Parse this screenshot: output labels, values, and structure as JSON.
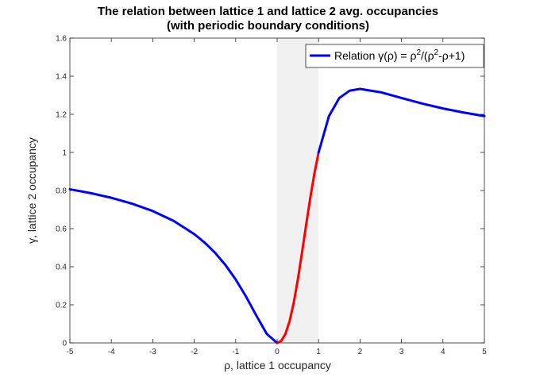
{
  "chart_data": {
    "type": "line",
    "title": "The relation between lattice 1 and lattice 2 avg. occupancies",
    "subtitle": "(with periodic boundary conditions)",
    "xlabel": "ρ, lattice 1 occupancy",
    "ylabel": "γ, lattice 2 occupancy",
    "xlim": [
      -5,
      5
    ],
    "ylim": [
      0,
      1.6
    ],
    "xticks": [
      -5,
      -4,
      -3,
      -2,
      -1,
      0,
      1,
      2,
      3,
      4,
      5
    ],
    "yticks": [
      0,
      0.2,
      0.4,
      0.6,
      0.8,
      1,
      1.2,
      1.4,
      1.6
    ],
    "xtick_labels": [
      "-5",
      "-4",
      "-3",
      "-2",
      "-1",
      "0",
      "1",
      "2",
      "3",
      "4",
      "5"
    ],
    "ytick_labels": [
      "0",
      "0.2",
      "0.4",
      "0.6",
      "0.8",
      "1",
      "1.2",
      "1.4",
      "1.6"
    ],
    "grid": false,
    "shaded_region": {
      "x": [
        0,
        1
      ],
      "color": "#f0f0f0"
    },
    "legend": {
      "position": "top-right",
      "entries": [
        {
          "label_main": "Relation γ(ρ) = ρ",
          "sup1": "2",
          "label_mid": "/(ρ",
          "sup2": "2",
          "label_end": "-ρ+1)",
          "color": "#0000ff"
        }
      ]
    },
    "series": [
      {
        "color": "#0000ff",
        "x": [
          -5,
          -4.5,
          -4,
          -3.5,
          -3,
          -2.5,
          -2,
          -1.75,
          -1.5,
          -1.25,
          -1,
          -0.75,
          -0.5,
          -0.25,
          0
        ],
        "y": [
          0.8065,
          0.7864,
          0.7619,
          0.731,
          0.6923,
          0.641,
          0.5714,
          0.5269,
          0.4737,
          0.4098,
          0.3333,
          0.2432,
          0.1429,
          0.0476,
          0
        ]
      },
      {
        "color": "#ff0000",
        "x": [
          0,
          0.1,
          0.2,
          0.3,
          0.4,
          0.5,
          0.6,
          0.7,
          0.8,
          0.9,
          1
        ],
        "y": [
          0,
          0.011,
          0.0476,
          0.1139,
          0.2105,
          0.3333,
          0.4737,
          0.6203,
          0.7619,
          0.8901,
          1
        ]
      },
      {
        "color": "#0000ff",
        "x": [
          1,
          1.25,
          1.5,
          1.75,
          2,
          2.5,
          3,
          3.5,
          4,
          4.5,
          5
        ],
        "y": [
          1,
          1.1905,
          1.2857,
          1.3243,
          1.3333,
          1.3158,
          1.2857,
          1.2564,
          1.2308,
          1.2093,
          1.1905
        ]
      }
    ]
  }
}
